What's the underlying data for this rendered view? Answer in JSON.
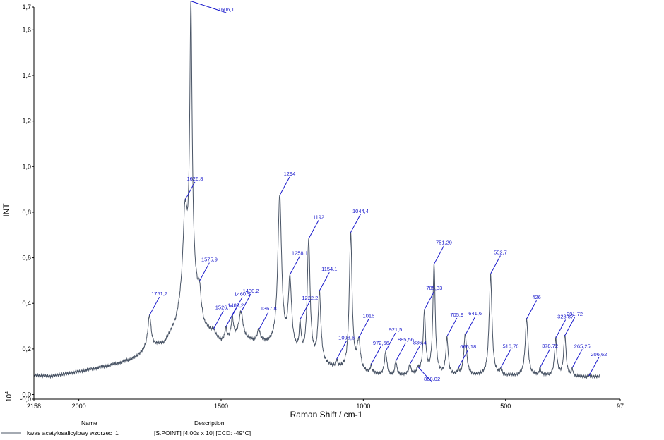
{
  "chart_data": {
    "type": "line",
    "xlabel": "Raman Shift / cm-1",
    "ylabel": "INT",
    "y_multiplier_label": "10",
    "y_multiplier_exp": "4",
    "xlim": [
      2158,
      97
    ],
    "ylim": [
      -0.02,
      1.7
    ],
    "x_ticks": [
      {
        "value": 2158,
        "label": "2158"
      },
      {
        "value": 2000,
        "label": "2000"
      },
      {
        "value": 1500,
        "label": "1500"
      },
      {
        "value": 1000,
        "label": "1000"
      },
      {
        "value": 500,
        "label": "500"
      },
      {
        "value": 97,
        "label": "97"
      }
    ],
    "y_ticks": [
      {
        "value": -0.02,
        "label": "-0,0"
      },
      {
        "value": 0.0,
        "label": "0,0"
      },
      {
        "value": 0.2,
        "label": "0,2"
      },
      {
        "value": 0.4,
        "label": "0,4"
      },
      {
        "value": 0.6,
        "label": "0,6"
      },
      {
        "value": 0.8,
        "label": "0,8"
      },
      {
        "value": 1.0,
        "label": "1,0"
      },
      {
        "value": 1.2,
        "label": "1,2"
      },
      {
        "value": 1.4,
        "label": "1,4"
      },
      {
        "value": 1.6,
        "label": "1,6"
      },
      {
        "value": 1.7,
        "label": "1,7"
      }
    ],
    "series": [
      {
        "name": "kwas acetylosalicylowy wzorzec_1",
        "color": "#4a5566",
        "baseline": [
          [
            2158,
            0.085
          ],
          [
            2100,
            0.08
          ],
          [
            2000,
            0.1
          ],
          [
            1900,
            0.125
          ],
          [
            1850,
            0.14
          ],
          [
            1800,
            0.16
          ],
          [
            1760,
            0.2
          ],
          [
            1700,
            0.22
          ],
          [
            1660,
            0.3
          ],
          [
            1620,
            0.45
          ],
          [
            1600,
            0.5
          ],
          [
            1560,
            0.3
          ],
          [
            1500,
            0.23
          ],
          [
            1450,
            0.24
          ],
          [
            1400,
            0.23
          ],
          [
            1350,
            0.22
          ],
          [
            1300,
            0.2
          ],
          [
            1250,
            0.18
          ],
          [
            1200,
            0.15
          ],
          [
            1150,
            0.13
          ],
          [
            1100,
            0.11
          ],
          [
            1000,
            0.09
          ],
          [
            900,
            0.08
          ],
          [
            800,
            0.09
          ],
          [
            700,
            0.08
          ],
          [
            600,
            0.08
          ],
          [
            500,
            0.08
          ],
          [
            400,
            0.08
          ],
          [
            300,
            0.08
          ],
          [
            200,
            0.075
          ],
          [
            170,
            0.08
          ]
        ],
        "peaks": [
          {
            "x": 1751.7,
            "h": 0.14,
            "w": 7
          },
          {
            "x": 1626.8,
            "h": 0.36,
            "w": 9
          },
          {
            "x": 1606.1,
            "h": 1.18,
            "w": 5
          },
          {
            "x": 1575.9,
            "h": 0.08,
            "w": 5
          },
          {
            "x": 1526.7,
            "h": 0.02,
            "w": 5
          },
          {
            "x": 1483.2,
            "h": 0.05,
            "w": 4
          },
          {
            "x": 1460.5,
            "h": 0.09,
            "w": 5
          },
          {
            "x": 1430.2,
            "h": 0.12,
            "w": 9
          },
          {
            "x": 1367.8,
            "h": 0.05,
            "w": 6
          },
          {
            "x": 1294,
            "h": 0.66,
            "w": 8
          },
          {
            "x": 1258.1,
            "h": 0.3,
            "w": 7
          },
          {
            "x": 1222.2,
            "h": 0.12,
            "w": 4
          },
          {
            "x": 1192,
            "h": 0.52,
            "w": 6
          },
          {
            "x": 1154.1,
            "h": 0.3,
            "w": 6
          },
          {
            "x": 1093.6,
            "h": 0.03,
            "w": 4
          },
          {
            "x": 1044.4,
            "h": 0.6,
            "w": 6
          },
          {
            "x": 1016,
            "h": 0.13,
            "w": 7
          },
          {
            "x": 972.56,
            "h": 0.03,
            "w": 4
          },
          {
            "x": 921.5,
            "h": 0.1,
            "w": 5
          },
          {
            "x": 885.56,
            "h": 0.06,
            "w": 4
          },
          {
            "x": 836.4,
            "h": 0.04,
            "w": 4
          },
          {
            "x": 808.02,
            "h": 0.02,
            "w": 3
          },
          {
            "x": 785.33,
            "h": 0.27,
            "w": 5
          },
          {
            "x": 751.29,
            "h": 0.48,
            "w": 5
          },
          {
            "x": 705.9,
            "h": 0.16,
            "w": 5
          },
          {
            "x": 666.18,
            "h": 0.02,
            "w": 3
          },
          {
            "x": 641.6,
            "h": 0.18,
            "w": 6
          },
          {
            "x": 552.7,
            "h": 0.44,
            "w": 6
          },
          {
            "x": 516.76,
            "h": 0.02,
            "w": 4
          },
          {
            "x": 426,
            "h": 0.25,
            "w": 6
          },
          {
            "x": 378.72,
            "h": 0.03,
            "w": 4
          },
          {
            "x": 323.87,
            "h": 0.16,
            "w": 5
          },
          {
            "x": 291.72,
            "h": 0.18,
            "w": 5
          },
          {
            "x": 265.25,
            "h": 0.03,
            "w": 3
          },
          {
            "x": 206.62,
            "h": 0.01,
            "w": 4
          }
        ]
      }
    ],
    "annotations": [
      {
        "x": 1751.7,
        "label": "1751,7"
      },
      {
        "x": 1626.8,
        "label": "1626,8"
      },
      {
        "x": 1606.1,
        "label": "1606,1"
      },
      {
        "x": 1575.9,
        "label": "1575,9"
      },
      {
        "x": 1526.7,
        "label": "1526,7"
      },
      {
        "x": 1483.2,
        "label": "1483,2"
      },
      {
        "x": 1460.5,
        "label": "1460,5"
      },
      {
        "x": 1430.2,
        "label": "1430,2"
      },
      {
        "x": 1367.8,
        "label": "1367,8"
      },
      {
        "x": 1294,
        "label": "1294"
      },
      {
        "x": 1258.1,
        "label": "1258,1"
      },
      {
        "x": 1222.2,
        "label": "1222,2"
      },
      {
        "x": 1192,
        "label": "1192"
      },
      {
        "x": 1154.1,
        "label": "1154,1"
      },
      {
        "x": 1093.6,
        "label": "1093,6"
      },
      {
        "x": 1044.4,
        "label": "1044,4"
      },
      {
        "x": 1016,
        "label": "1016"
      },
      {
        "x": 972.56,
        "label": "972,56"
      },
      {
        "x": 921.5,
        "label": "921,5"
      },
      {
        "x": 885.56,
        "label": "885,56"
      },
      {
        "x": 836.4,
        "label": "836,4"
      },
      {
        "x": 808.02,
        "label": "808,02"
      },
      {
        "x": 785.33,
        "label": "785,33"
      },
      {
        "x": 751.29,
        "label": "751,29"
      },
      {
        "x": 705.9,
        "label": "705,9"
      },
      {
        "x": 666.18,
        "label": "666,18"
      },
      {
        "x": 641.6,
        "label": "641,6"
      },
      {
        "x": 552.7,
        "label": "552,7"
      },
      {
        "x": 516.76,
        "label": "516,76"
      },
      {
        "x": 426,
        "label": "426"
      },
      {
        "x": 378.72,
        "label": "378,72"
      },
      {
        "x": 323.87,
        "label": "323,87"
      },
      {
        "x": 291.72,
        "label": "291,72"
      },
      {
        "x": 265.25,
        "label": "265,25"
      },
      {
        "x": 206.62,
        "label": "206,62"
      }
    ]
  },
  "legend": {
    "name_header": "Name",
    "description_header": "Description",
    "series_name": "kwas acetylosalicylowy wzorzec_1",
    "description": "[S.POINT] [4.00s x 10] [CCD: -49°C]"
  },
  "colors": {
    "annotation": "#1a1acc",
    "axis": "#000000",
    "trace": "#4a5566"
  }
}
